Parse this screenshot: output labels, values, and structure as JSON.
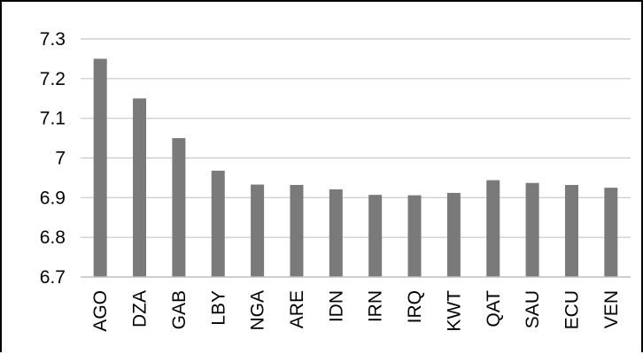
{
  "chart_data": {
    "type": "bar",
    "title": "",
    "xlabel": "",
    "ylabel": "",
    "categories": [
      "AGO",
      "DZA",
      "GAB",
      "LBY",
      "NGA",
      "ARE",
      "IDN",
      "IRN",
      "IRQ",
      "KWT",
      "QAT",
      "SAU",
      "ECU",
      "VEN"
    ],
    "values": [
      7.25,
      7.15,
      7.05,
      6.968,
      6.933,
      6.932,
      6.921,
      6.907,
      6.906,
      6.912,
      6.944,
      6.937,
      6.932,
      6.925
    ],
    "ylim": [
      6.7,
      7.3
    ],
    "yticks": [
      "6.7",
      "6.8",
      "6.9",
      "7",
      "7.1",
      "7.2",
      "7.3"
    ],
    "grid": true,
    "legend": "none",
    "colors": {
      "bar": "#7a7a7a",
      "grid": "#c8c8c8",
      "axis": "#bfbfbf",
      "text": "#000000"
    }
  }
}
